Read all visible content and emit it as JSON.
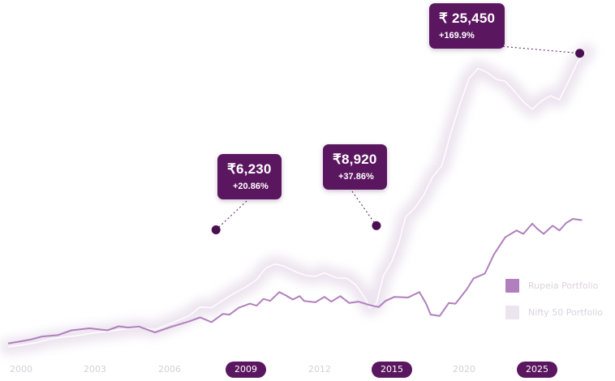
{
  "chart_data": {
    "type": "line",
    "x_ticks": [
      "2000",
      "2003",
      "2006",
      "2009",
      "2012",
      "2015",
      "2020",
      "2025"
    ],
    "highlighted_ticks": [
      "2009",
      "2015",
      "2025"
    ],
    "series": [
      {
        "name": "Rupeia Portfolio",
        "color": "#b17fbd",
        "style": "line",
        "points": [
          [
            2000.0,
            1.0
          ],
          [
            2000.5,
            1.25
          ],
          [
            2001.0,
            1.55
          ],
          [
            2001.5,
            2.0
          ],
          [
            2002.2,
            2.2
          ],
          [
            2002.8,
            2.9
          ],
          [
            2003.6,
            3.2
          ],
          [
            2004.4,
            2.9
          ],
          [
            2004.9,
            3.5
          ],
          [
            2005.3,
            3.3
          ],
          [
            2005.8,
            3.45
          ],
          [
            2006.5,
            2.6
          ],
          [
            2007.2,
            3.4
          ],
          [
            2008.0,
            4.2
          ],
          [
            2008.5,
            4.8
          ],
          [
            2009.0,
            4.1
          ],
          [
            2009.5,
            5.3
          ],
          [
            2009.8,
            5.2
          ],
          [
            2010.2,
            6.2
          ],
          [
            2010.7,
            6.8
          ],
          [
            2011.0,
            6.5
          ],
          [
            2011.3,
            7.5
          ],
          [
            2011.6,
            7.2
          ],
          [
            2012.0,
            8.5
          ],
          [
            2012.3,
            8.0
          ],
          [
            2012.6,
            7.4
          ],
          [
            2012.9,
            7.9
          ],
          [
            2013.1,
            7.2
          ],
          [
            2013.6,
            7.0
          ],
          [
            2014.0,
            7.8
          ],
          [
            2014.3,
            7.1
          ],
          [
            2014.7,
            7.9
          ],
          [
            2015.1,
            6.9
          ],
          [
            2015.5,
            7.1
          ],
          [
            2016.0,
            6.6
          ],
          [
            2016.4,
            6.3
          ],
          [
            2016.7,
            7.2
          ],
          [
            2017.1,
            7.8
          ],
          [
            2017.7,
            7.7
          ],
          [
            2018.2,
            8.5
          ],
          [
            2018.5,
            6.8
          ],
          [
            2018.7,
            5.2
          ],
          [
            2019.1,
            5.0
          ],
          [
            2019.5,
            6.9
          ],
          [
            2019.8,
            6.8
          ],
          [
            2020.3,
            8.9
          ],
          [
            2020.6,
            10.5
          ],
          [
            2021.1,
            11.2
          ],
          [
            2021.5,
            14.0
          ],
          [
            2022.0,
            16.5
          ],
          [
            2022.5,
            17.5
          ],
          [
            2022.8,
            17.0
          ],
          [
            2023.2,
            18.5
          ],
          [
            2023.4,
            17.8
          ],
          [
            2023.7,
            17.0
          ],
          [
            2024.1,
            18.2
          ],
          [
            2024.4,
            17.5
          ],
          [
            2024.7,
            18.6
          ],
          [
            2025.0,
            19.2
          ],
          [
            2025.4,
            19.0
          ]
        ]
      },
      {
        "name": "Nifty 50 Portfolio",
        "color": "#ece4ef",
        "style": "blurred-band",
        "points": [
          [
            2000.0,
            0.5
          ],
          [
            2000.7,
            0.8
          ],
          [
            2001.2,
            1.05
          ],
          [
            2001.8,
            1.6
          ],
          [
            2002.4,
            1.9
          ],
          [
            2003.0,
            2.1
          ],
          [
            2003.7,
            2.5
          ],
          [
            2004.5,
            2.8
          ],
          [
            2005.2,
            3.1
          ],
          [
            2005.8,
            3.3
          ],
          [
            2006.5,
            3.0
          ],
          [
            2007.2,
            3.9
          ],
          [
            2008.0,
            5.0
          ],
          [
            2008.5,
            6.3
          ],
          [
            2009.0,
            6.2
          ],
          [
            2009.5,
            7.3
          ],
          [
            2010.0,
            8.3
          ],
          [
            2010.5,
            9.2
          ],
          [
            2011.0,
            10.3
          ],
          [
            2011.4,
            12.0
          ],
          [
            2011.8,
            12.6
          ],
          [
            2012.2,
            12.3
          ],
          [
            2012.7,
            11.5
          ],
          [
            2013.2,
            10.9
          ],
          [
            2013.6,
            10.8
          ],
          [
            2014.0,
            11.3
          ],
          [
            2014.5,
            10.6
          ],
          [
            2015.0,
            10.5
          ],
          [
            2015.4,
            9.5
          ],
          [
            2015.8,
            7.6
          ],
          [
            2016.0,
            6.2
          ],
          [
            2016.3,
            6.8
          ],
          [
            2016.6,
            10.8
          ],
          [
            2017.0,
            13.1
          ],
          [
            2017.3,
            15.8
          ],
          [
            2017.6,
            19.5
          ],
          [
            2018.0,
            20.8
          ],
          [
            2018.4,
            22.7
          ],
          [
            2018.8,
            25.4
          ],
          [
            2019.2,
            27.0
          ],
          [
            2019.6,
            31.8
          ],
          [
            2020.0,
            36.0
          ],
          [
            2020.4,
            39.7
          ],
          [
            2020.8,
            41.2
          ],
          [
            2021.2,
            40.6
          ],
          [
            2021.6,
            39.6
          ],
          [
            2022.0,
            39.3
          ],
          [
            2022.4,
            37.9
          ],
          [
            2022.8,
            36.3
          ],
          [
            2023.2,
            35.2
          ],
          [
            2023.6,
            36.4
          ],
          [
            2024.0,
            37.2
          ],
          [
            2024.4,
            36.6
          ],
          [
            2024.8,
            39.3
          ],
          [
            2025.2,
            42.1
          ],
          [
            2025.6,
            43.6
          ]
        ]
      }
    ],
    "callouts": [
      {
        "amount": "₹6,230",
        "change": "+20.86%",
        "x": 2009.2,
        "y": 17.6
      },
      {
        "amount": "₹8,920",
        "change": "+37.86%",
        "x": 2016.3,
        "y": 18.2
      },
      {
        "amount": "₹ 25,450",
        "change": "+169.9%",
        "x": 2025.3,
        "y": 43.4
      }
    ],
    "xlim": [
      2000,
      2026.5
    ],
    "ylim": [
      0,
      50
    ],
    "grid": false,
    "legend_position": "bottom-right"
  }
}
